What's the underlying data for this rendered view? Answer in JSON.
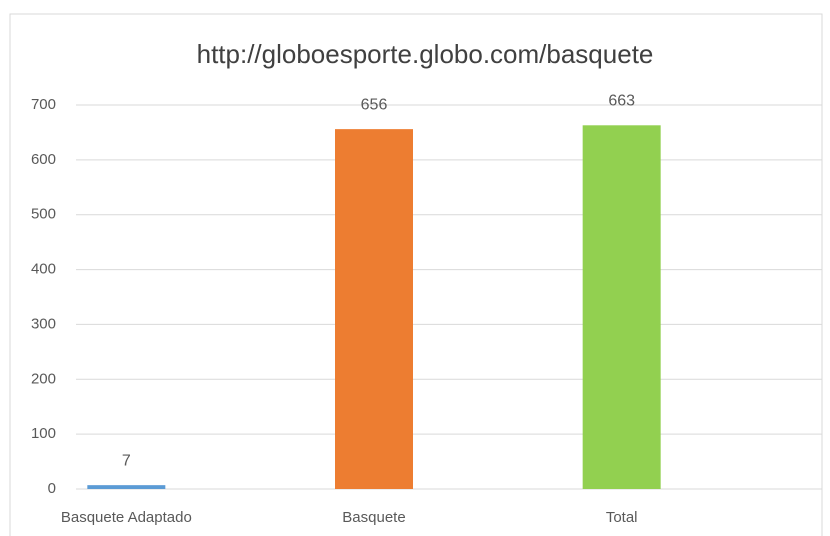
{
  "chart_data": {
    "type": "bar",
    "title": "http://globoesporte.globo.com/basquete",
    "categories": [
      "Basquete  Adaptado",
      "Basquete",
      "Total"
    ],
    "values": [
      7,
      656,
      663
    ],
    "colors": [
      "#5b9bd5",
      "#ed7d31",
      "#92d050"
    ],
    "ylim": [
      0,
      700
    ],
    "yticks": [
      0,
      100,
      200,
      300,
      400,
      500,
      600,
      700
    ],
    "grid": true
  }
}
